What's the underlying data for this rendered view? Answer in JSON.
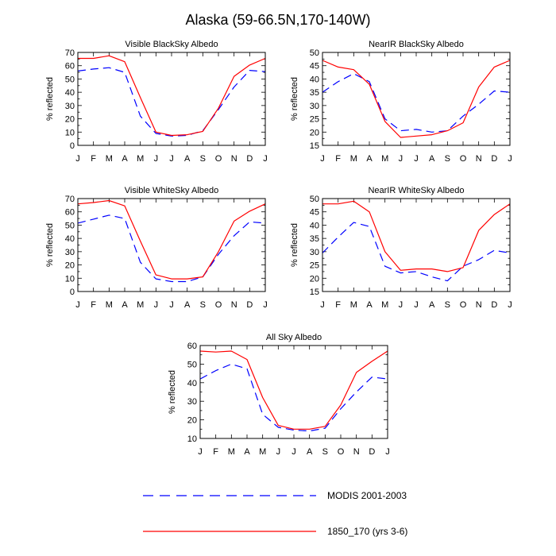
{
  "figure": {
    "title": "Alaska (59-66.5N,170-140W)"
  },
  "legend": {
    "items": [
      {
        "label": "MODIS 2001-2003",
        "color": "#0000ff",
        "style": "dashed"
      },
      {
        "label": "1850_170 (yrs 3-6)",
        "color": "#ff0000",
        "style": "solid"
      }
    ]
  },
  "chart_data": [
    {
      "type": "line",
      "title": "Visible BlackSky Albedo",
      "xlabel": "",
      "ylabel": "% reflected",
      "categories": [
        "J",
        "F",
        "M",
        "A",
        "M",
        "J",
        "J",
        "A",
        "S",
        "O",
        "N",
        "D",
        "J"
      ],
      "ylim": [
        0,
        70
      ],
      "yticks": [
        0,
        10,
        20,
        30,
        40,
        50,
        60,
        70
      ],
      "series": [
        {
          "name": "MODIS 2001-2003",
          "color": "#0000ff",
          "style": "dashed",
          "values": [
            56,
            57.5,
            58.5,
            55,
            22,
            9,
            7,
            7.5,
            11,
            27,
            44,
            56.5,
            55.5
          ]
        },
        {
          "name": "1850_170 (yrs 3-6)",
          "color": "#ff0000",
          "style": "solid",
          "values": [
            65.5,
            65.5,
            67.5,
            63,
            36,
            10,
            7.5,
            8,
            10.5,
            28,
            52,
            60.5,
            65.5
          ]
        }
      ]
    },
    {
      "type": "line",
      "title": "NearIR BlackSky Albedo",
      "xlabel": "",
      "ylabel": "% reflected",
      "categories": [
        "J",
        "F",
        "M",
        "A",
        "M",
        "J",
        "J",
        "A",
        "S",
        "O",
        "N",
        "D",
        "J"
      ],
      "ylim": [
        15,
        50
      ],
      "yticks": [
        15,
        20,
        25,
        30,
        35,
        40,
        45,
        50
      ],
      "series": [
        {
          "name": "MODIS 2001-2003",
          "color": "#0000ff",
          "style": "dashed",
          "values": [
            35,
            39,
            42,
            39,
            25,
            20.5,
            21,
            20,
            20.5,
            26,
            30.5,
            35.5,
            35
          ]
        },
        {
          "name": "1850_170 (yrs 3-6)",
          "color": "#ff0000",
          "style": "solid",
          "values": [
            47,
            44.5,
            43.5,
            38,
            24,
            18,
            18.5,
            19,
            20.5,
            23.5,
            37,
            44.5,
            47
          ]
        }
      ]
    },
    {
      "type": "line",
      "title": "Visible WhiteSky Albedo",
      "xlabel": "",
      "ylabel": "% reflected",
      "categories": [
        "J",
        "F",
        "M",
        "A",
        "M",
        "J",
        "J",
        "A",
        "S",
        "O",
        "N",
        "D",
        "J"
      ],
      "ylim": [
        0,
        70
      ],
      "yticks": [
        0,
        10,
        20,
        30,
        40,
        50,
        60,
        70
      ],
      "series": [
        {
          "name": "MODIS 2001-2003",
          "color": "#0000ff",
          "style": "dashed",
          "values": [
            51.5,
            54.5,
            57.5,
            55,
            22,
            9.5,
            7.5,
            7.5,
            11,
            28,
            42,
            52.5,
            51.5
          ]
        },
        {
          "name": "1850_170 (yrs 3-6)",
          "color": "#ff0000",
          "style": "solid",
          "values": [
            66,
            67,
            68.5,
            64.5,
            38,
            12.5,
            9.5,
            9.5,
            11,
            30,
            53,
            60.5,
            66
          ]
        }
      ]
    },
    {
      "type": "line",
      "title": "NearIR WhiteSky Albedo",
      "xlabel": "",
      "ylabel": "% reflected",
      "categories": [
        "J",
        "F",
        "M",
        "A",
        "M",
        "J",
        "J",
        "A",
        "S",
        "O",
        "N",
        "D",
        "J"
      ],
      "ylim": [
        15,
        50
      ],
      "yticks": [
        15,
        20,
        25,
        30,
        35,
        40,
        45,
        50
      ],
      "series": [
        {
          "name": "MODIS 2001-2003",
          "color": "#0000ff",
          "style": "dashed",
          "values": [
            29.5,
            35.5,
            41,
            39.5,
            24.5,
            22,
            22.5,
            20.5,
            19,
            24.5,
            27,
            30.5,
            29.5
          ]
        },
        {
          "name": "1850_170 (yrs 3-6)",
          "color": "#ff0000",
          "style": "solid",
          "values": [
            48,
            48,
            49,
            45,
            30,
            23,
            23.5,
            23.5,
            22.5,
            24,
            38,
            44,
            48
          ]
        }
      ]
    },
    {
      "type": "line",
      "title": "All Sky Albedo",
      "xlabel": "",
      "ylabel": "% reflected",
      "categories": [
        "J",
        "F",
        "M",
        "A",
        "M",
        "J",
        "J",
        "A",
        "S",
        "O",
        "N",
        "D",
        "J"
      ],
      "ylim": [
        10,
        60
      ],
      "yticks": [
        10,
        20,
        30,
        40,
        50,
        60
      ],
      "series": [
        {
          "name": "MODIS 2001-2003",
          "color": "#0000ff",
          "style": "dashed",
          "values": [
            42,
            46.5,
            50,
            47.5,
            23,
            16,
            14.5,
            14,
            15.5,
            26,
            35,
            43,
            42
          ]
        },
        {
          "name": "1850_170 (yrs 3-6)",
          "color": "#ff0000",
          "style": "solid",
          "values": [
            57,
            56.5,
            57,
            52.5,
            32,
            17,
            15,
            15,
            16.5,
            28,
            45.5,
            51.5,
            57
          ]
        }
      ]
    }
  ]
}
